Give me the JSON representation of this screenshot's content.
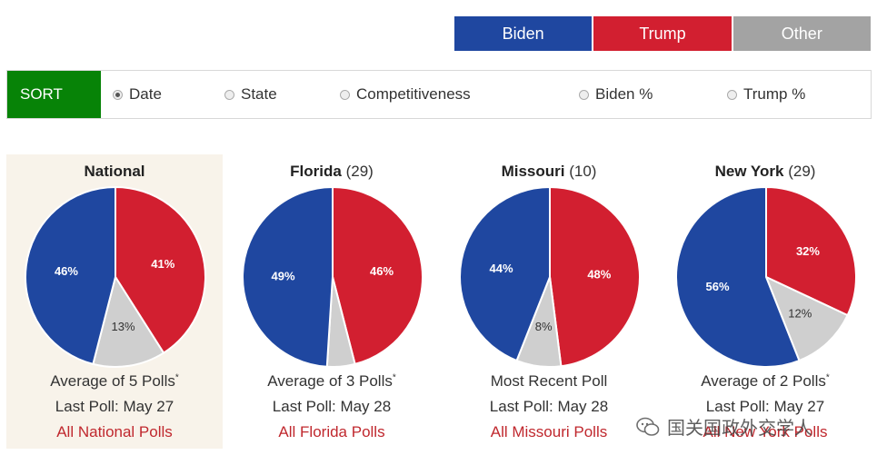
{
  "legend": [
    {
      "label": "Biden",
      "color": "#1f47a0"
    },
    {
      "label": "Trump",
      "color": "#d21f30"
    },
    {
      "label": "Other",
      "color": "#a3a3a3"
    }
  ],
  "sort": {
    "label": "SORT",
    "options": [
      {
        "label": "Date",
        "selected": true
      },
      {
        "label": "State",
        "selected": false
      },
      {
        "label": "Competitiveness",
        "selected": false
      },
      {
        "label": "Biden %",
        "selected": false
      },
      {
        "label": "Trump %",
        "selected": false
      }
    ]
  },
  "chart_data": [
    {
      "type": "pie",
      "title": "National",
      "electoral_votes": "",
      "categories": [
        "Biden",
        "Trump",
        "Other"
      ],
      "values": [
        46,
        41,
        13
      ],
      "labels": [
        "46%",
        "41%",
        "13%"
      ],
      "caption": "Average of 5 Polls",
      "footnote_mark": "*",
      "last_poll": "Last Poll: May 27",
      "link": "All National Polls",
      "highlighted": true
    },
    {
      "type": "pie",
      "title": "Florida",
      "electoral_votes": "(29)",
      "categories": [
        "Biden",
        "Trump",
        "Other"
      ],
      "values": [
        49,
        46,
        5
      ],
      "labels": [
        "49%",
        "46%",
        ""
      ],
      "caption": "Average of 3 Polls",
      "footnote_mark": "*",
      "last_poll": "Last Poll: May 28",
      "link": "All Florida Polls",
      "highlighted": false
    },
    {
      "type": "pie",
      "title": "Missouri",
      "electoral_votes": "(10)",
      "categories": [
        "Biden",
        "Trump",
        "Other"
      ],
      "values": [
        44,
        48,
        8
      ],
      "labels": [
        "44%",
        "48%",
        "8%"
      ],
      "caption": "Most Recent Poll",
      "footnote_mark": "",
      "last_poll": "Last Poll: May 28",
      "link": "All Missouri Polls",
      "highlighted": false
    },
    {
      "type": "pie",
      "title": "New York",
      "electoral_votes": "(29)",
      "categories": [
        "Biden",
        "Trump",
        "Other"
      ],
      "values": [
        56,
        32,
        12
      ],
      "labels": [
        "56%",
        "32%",
        "12%"
      ],
      "caption": "Average of 2 Polls",
      "footnote_mark": "*",
      "last_poll": "Last Poll: May 27",
      "link": "All New York Polls",
      "highlighted": false
    }
  ],
  "watermark": "国关国政外交学人"
}
